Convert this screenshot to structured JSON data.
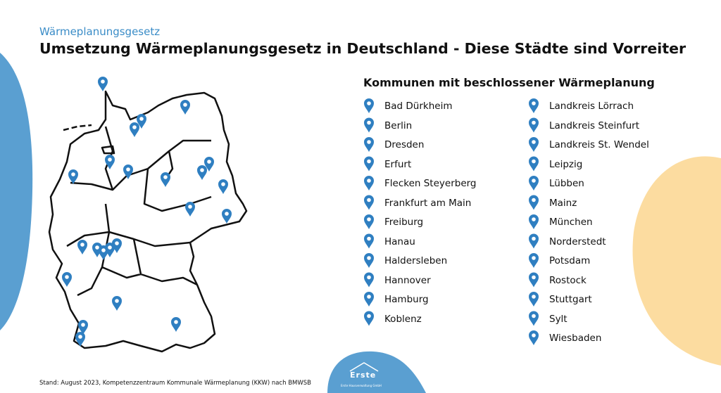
{
  "header": {
    "subtitle": "Wärmeplanungsgesetz",
    "title": "Umsetzung Wärmeplanungsgesetz in Deutschland - Diese Städte sind Vorreiter"
  },
  "list": {
    "heading": "Kommunen mit beschlossener Wärmeplanung",
    "column_1": [
      "Bad Dürkheim",
      "Berlin",
      "Dresden",
      "Erfurt",
      "Flecken Steyerberg",
      "Frankfurt am Main",
      "Freiburg",
      "Hanau",
      "Haldersleben",
      "Hannover",
      "Hamburg",
      "Koblenz"
    ],
    "column_2": [
      "Landkreis Lörrach",
      "Landkreis Steinfurt",
      "Landkreis St. Wendel",
      "Leipzig",
      "Lübben",
      "Mainz",
      "München",
      "Norderstedt",
      "Potsdam",
      "Rostock",
      "Stuttgart",
      "Sylt",
      "Wiesbaden"
    ]
  },
  "footer": {
    "source": "Stand: August 2023, Kompetenzzentraum Kommunale Wärmeplanung (KKW) nach BMWSB"
  },
  "logo": {
    "name": "Erste",
    "tagline": "Erste Hausverwaltung GmbH"
  }
}
